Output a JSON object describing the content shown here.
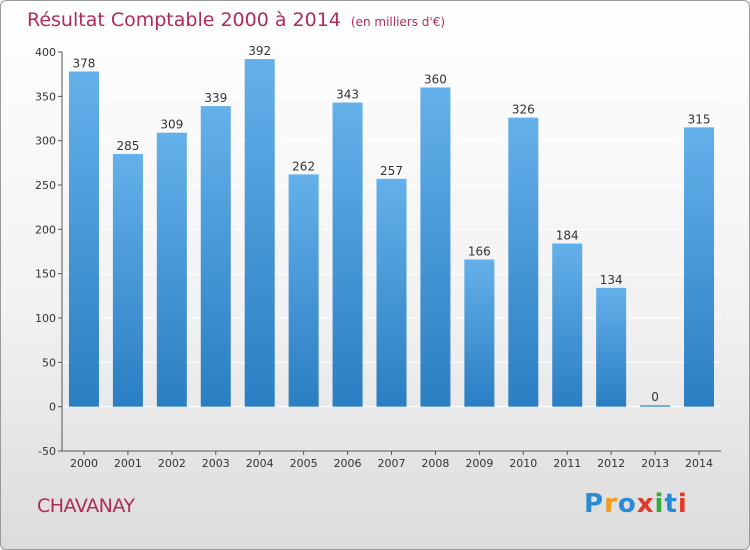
{
  "title": "Résultat Comptable 2000 à 2014",
  "subtitle": "(en milliers d'€)",
  "place": "CHAVANAY",
  "logo": {
    "letters": [
      "P",
      "r",
      "o",
      "x",
      "i",
      "t",
      "i"
    ],
    "colors": [
      "#2a8ad4",
      "#f29a1a",
      "#2a8ad4",
      "#e23a2a",
      "#3aa83a",
      "#2a8ad4",
      "#e23a2a"
    ]
  },
  "colors": {
    "bar_light": "#64b0ea",
    "bar_dark": "#2a7ec2",
    "title": "#b22a5a"
  },
  "chart_data": {
    "type": "bar",
    "categories": [
      "2000",
      "2001",
      "2002",
      "2003",
      "2004",
      "2005",
      "2006",
      "2007",
      "2008",
      "2009",
      "2010",
      "2011",
      "2012",
      "2013",
      "2014"
    ],
    "values": [
      378,
      285,
      309,
      339,
      392,
      262,
      343,
      257,
      360,
      166,
      326,
      184,
      134,
      0,
      315
    ],
    "data_labels": [
      "378",
      "285",
      "309",
      "339",
      "392",
      "262",
      "343",
      "257",
      "360",
      "166",
      "326",
      "184",
      "134",
      "0",
      "315"
    ],
    "ylim": [
      -50,
      400
    ],
    "yticks": [
      -50,
      0,
      50,
      100,
      150,
      200,
      250,
      300,
      350,
      400
    ],
    "grid": true,
    "xlabel": "",
    "ylabel": ""
  }
}
